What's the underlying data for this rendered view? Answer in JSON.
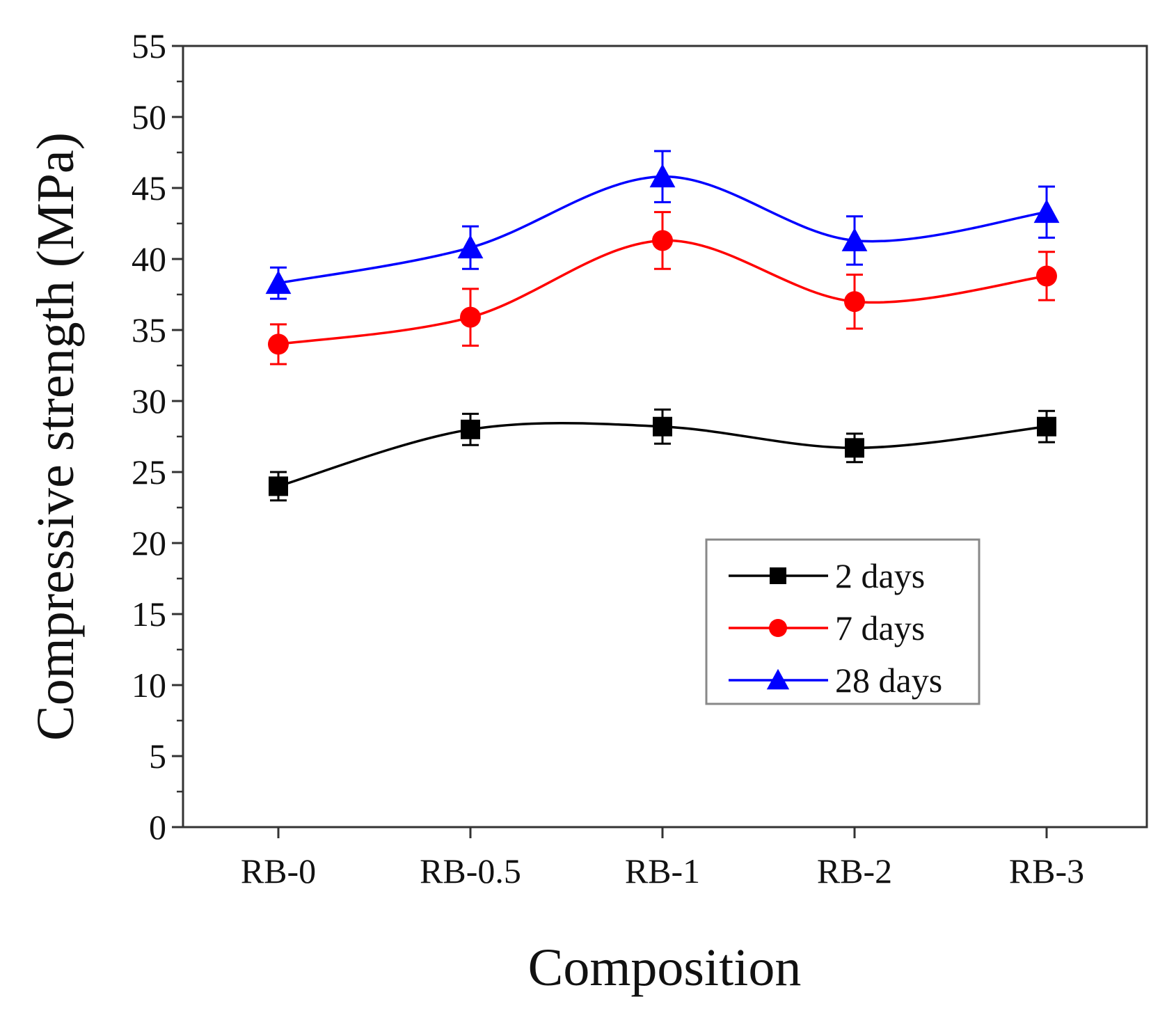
{
  "chart_data": {
    "type": "line",
    "title": "",
    "xlabel": "Composition",
    "ylabel": "Compressive strength (MPa)",
    "categories": [
      "RB-0",
      "RB-0.5",
      "RB-1",
      "RB-2",
      "RB-3"
    ],
    "ylim": [
      0,
      55
    ],
    "yticks": [
      0,
      5,
      10,
      15,
      20,
      25,
      30,
      35,
      40,
      45,
      50,
      55
    ],
    "grid": false,
    "legend_position": "lower-right",
    "series": [
      {
        "name": "2 days",
        "color": "#000000",
        "marker": "square",
        "values": [
          24.0,
          28.0,
          28.2,
          26.7,
          28.2
        ],
        "errors": [
          1.0,
          1.1,
          1.2,
          1.0,
          1.1
        ]
      },
      {
        "name": "7 days",
        "color": "#ff0000",
        "marker": "circle",
        "values": [
          34.0,
          35.9,
          41.3,
          37.0,
          38.8
        ],
        "errors": [
          1.4,
          2.0,
          2.0,
          1.9,
          1.7
        ]
      },
      {
        "name": "28 days",
        "color": "#0000ff",
        "marker": "triangle",
        "values": [
          38.3,
          40.8,
          45.8,
          41.3,
          43.3
        ],
        "errors": [
          1.1,
          1.5,
          1.8,
          1.7,
          1.8
        ]
      }
    ]
  }
}
